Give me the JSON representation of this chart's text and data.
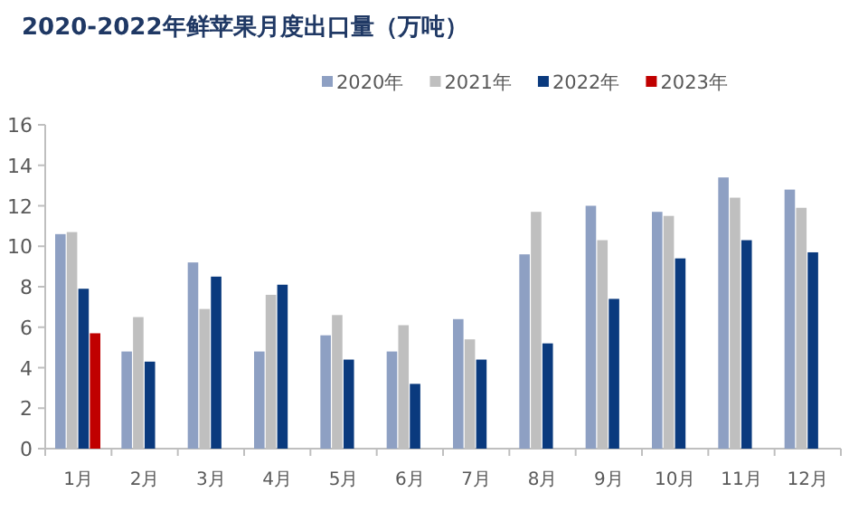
{
  "chart_data": {
    "type": "bar",
    "title": "2020-2022年鲜苹果月度出口量（万吨）",
    "categories": [
      "1月",
      "2月",
      "3月",
      "4月",
      "5月",
      "6月",
      "7月",
      "8月",
      "9月",
      "10月",
      "11月",
      "12月"
    ],
    "series": [
      {
        "name": "2020年",
        "color": "#8ea0c3",
        "values": [
          10.6,
          4.8,
          9.2,
          4.8,
          5.6,
          4.8,
          6.4,
          9.6,
          12.0,
          11.7,
          13.4,
          12.8
        ]
      },
      {
        "name": "2021年",
        "color": "#bfbfbf",
        "values": [
          10.7,
          6.5,
          6.9,
          7.6,
          6.6,
          6.1,
          5.4,
          11.7,
          10.3,
          11.5,
          12.4,
          11.9
        ]
      },
      {
        "name": "2022年",
        "color": "#0a3a7e",
        "values": [
          7.9,
          4.3,
          8.5,
          8.1,
          4.4,
          3.2,
          4.4,
          5.2,
          7.4,
          9.4,
          10.3,
          9.7
        ]
      },
      {
        "name": "2023年",
        "color": "#c00000",
        "values": [
          5.7,
          null,
          null,
          null,
          null,
          null,
          null,
          null,
          null,
          null,
          null,
          null
        ]
      }
    ],
    "ylim": [
      0,
      16
    ],
    "yticks": [
      0,
      2,
      4,
      6,
      8,
      10,
      12,
      14,
      16
    ],
    "grid": false,
    "legend": "top right"
  }
}
